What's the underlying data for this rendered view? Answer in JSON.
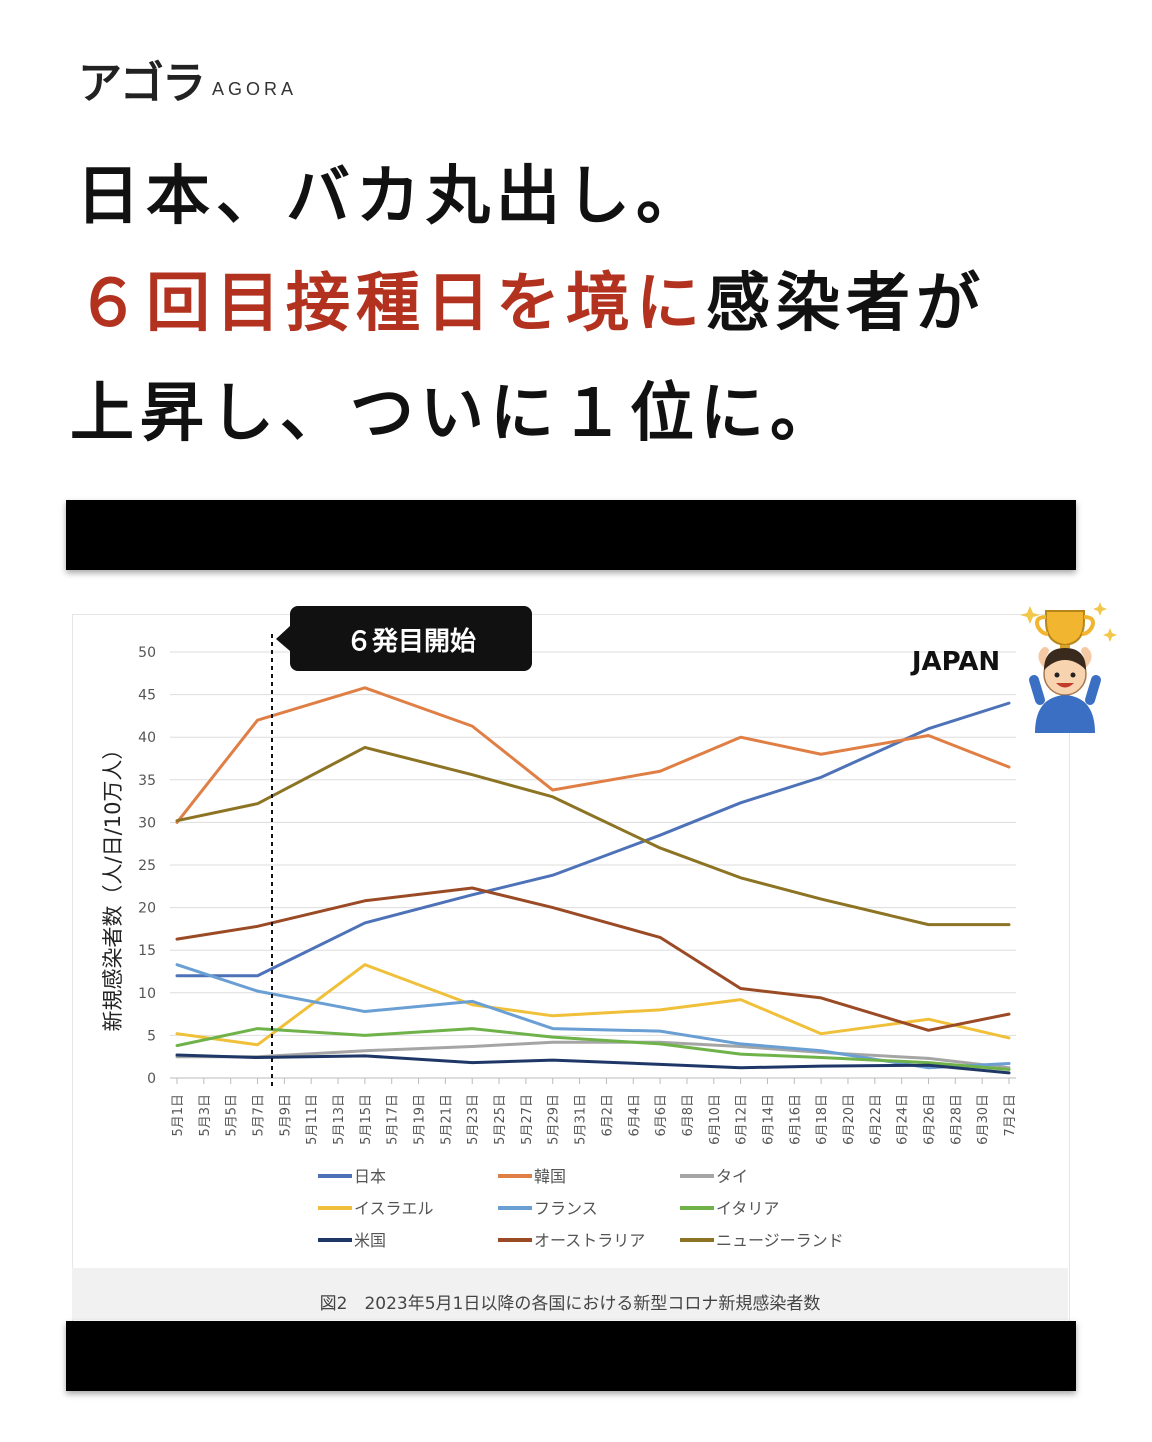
{
  "logo": {
    "jp": "アゴラ",
    "en": "AGORA"
  },
  "headline": {
    "line1": "日本、バカ丸出し。",
    "line2_red": "６回目接種日を境に",
    "line2_black": "感染者が",
    "line3": "上昇し、ついに１位に。"
  },
  "annotation": {
    "callout": "６発目開始",
    "japan_label": "JAPAN"
  },
  "caption": "図2　2023年5月1日以降の各国における新型コロナ新規感染者数",
  "colors": {
    "headline_red": "#b2321f"
  },
  "chart_data": {
    "type": "line",
    "ylabel": "新規感染者数（人/日/10万人）",
    "ylim": [
      0,
      50
    ],
    "yticks": [
      "0",
      "5",
      "10",
      "15",
      "20",
      "25",
      "30",
      "35",
      "40",
      "45",
      "50"
    ],
    "grid": true,
    "legend_position": "bottom",
    "x": [
      "5月1日",
      "5月3日",
      "5月5日",
      "5月7日",
      "5月9日",
      "5月11日",
      "5月13日",
      "5月15日",
      "5月17日",
      "5月19日",
      "5月21日",
      "5月23日",
      "5月25日",
      "5月27日",
      "5月29日",
      "5月31日",
      "6月2日",
      "6月4日",
      "6月6日",
      "6月8日",
      "6月10日",
      "6月12日",
      "6月14日",
      "6月16日",
      "6月18日",
      "6月20日",
      "6月22日",
      "6月24日",
      "6月26日",
      "6月28日",
      "6月30日",
      "7月2日"
    ],
    "series": [
      {
        "name": "日本",
        "color": "#4e72b8",
        "points": [
          [
            0,
            12
          ],
          [
            3,
            12
          ],
          [
            7,
            18.2
          ],
          [
            11,
            21.5
          ],
          [
            14,
            23.8
          ],
          [
            18,
            28.5
          ],
          [
            21,
            32.3
          ],
          [
            24,
            35.3
          ],
          [
            28,
            41
          ],
          [
            31,
            44
          ]
        ]
      },
      {
        "name": "韓国",
        "color": "#e07f45",
        "points": [
          [
            0,
            30
          ],
          [
            3,
            42
          ],
          [
            7,
            45.8
          ],
          [
            11,
            41.3
          ],
          [
            14,
            33.8
          ],
          [
            18,
            36
          ],
          [
            21,
            40
          ],
          [
            24,
            38
          ],
          [
            28,
            40.2
          ],
          [
            31,
            36.5
          ]
        ]
      },
      {
        "name": "タイ",
        "color": "#a5a5a5",
        "points": [
          [
            0,
            2.5
          ],
          [
            3,
            2.5
          ],
          [
            7,
            3.2
          ],
          [
            11,
            3.7
          ],
          [
            14,
            4.2
          ],
          [
            18,
            4.2
          ],
          [
            21,
            3.7
          ],
          [
            24,
            3
          ],
          [
            28,
            2.3
          ],
          [
            31,
            1.2
          ]
        ]
      },
      {
        "name": "イスラエル",
        "color": "#f0c03a",
        "points": [
          [
            0,
            5.2
          ],
          [
            3,
            3.9
          ],
          [
            7,
            13.3
          ],
          [
            11,
            8.6
          ],
          [
            14,
            7.3
          ],
          [
            18,
            8
          ],
          [
            21,
            9.2
          ],
          [
            24,
            5.2
          ],
          [
            28,
            6.9
          ],
          [
            31,
            4.7
          ]
        ]
      },
      {
        "name": "フランス",
        "color": "#6a9fd4",
        "points": [
          [
            0,
            13.3
          ],
          [
            3,
            10.2
          ],
          [
            7,
            7.8
          ],
          [
            11,
            9
          ],
          [
            14,
            5.8
          ],
          [
            18,
            5.5
          ],
          [
            21,
            4
          ],
          [
            24,
            3.2
          ],
          [
            28,
            1.2
          ],
          [
            31,
            1.7
          ]
        ]
      },
      {
        "name": "イタリア",
        "color": "#6fb24a",
        "points": [
          [
            0,
            3.8
          ],
          [
            3,
            5.8
          ],
          [
            7,
            5
          ],
          [
            11,
            5.8
          ],
          [
            14,
            4.8
          ],
          [
            18,
            4
          ],
          [
            21,
            2.8
          ],
          [
            24,
            2.4
          ],
          [
            28,
            1.8
          ],
          [
            31,
            1
          ]
        ]
      },
      {
        "name": "米国",
        "color": "#1f3767",
        "points": [
          [
            0,
            2.7
          ],
          [
            3,
            2.4
          ],
          [
            7,
            2.6
          ],
          [
            11,
            1.8
          ],
          [
            14,
            2.1
          ],
          [
            18,
            1.6
          ],
          [
            21,
            1.2
          ],
          [
            24,
            1.4
          ],
          [
            28,
            1.5
          ],
          [
            31,
            0.6
          ]
        ]
      },
      {
        "name": "オーストラリア",
        "color": "#9a4a25",
        "points": [
          [
            0,
            16.3
          ],
          [
            3,
            17.8
          ],
          [
            7,
            20.8
          ],
          [
            11,
            22.3
          ],
          [
            14,
            20
          ],
          [
            18,
            16.5
          ],
          [
            21,
            10.5
          ],
          [
            24,
            9.4
          ],
          [
            28,
            5.6
          ],
          [
            31,
            7.5
          ]
        ]
      },
      {
        "name": "ニュージーランド",
        "color": "#8c7424",
        "points": [
          [
            0,
            30.2
          ],
          [
            3,
            32.2
          ],
          [
            7,
            38.8
          ],
          [
            11,
            35.6
          ],
          [
            14,
            33
          ],
          [
            18,
            27
          ],
          [
            21,
            23.5
          ],
          [
            24,
            21
          ],
          [
            28,
            18
          ],
          [
            31,
            18
          ]
        ]
      }
    ],
    "marker_index": 3
  }
}
